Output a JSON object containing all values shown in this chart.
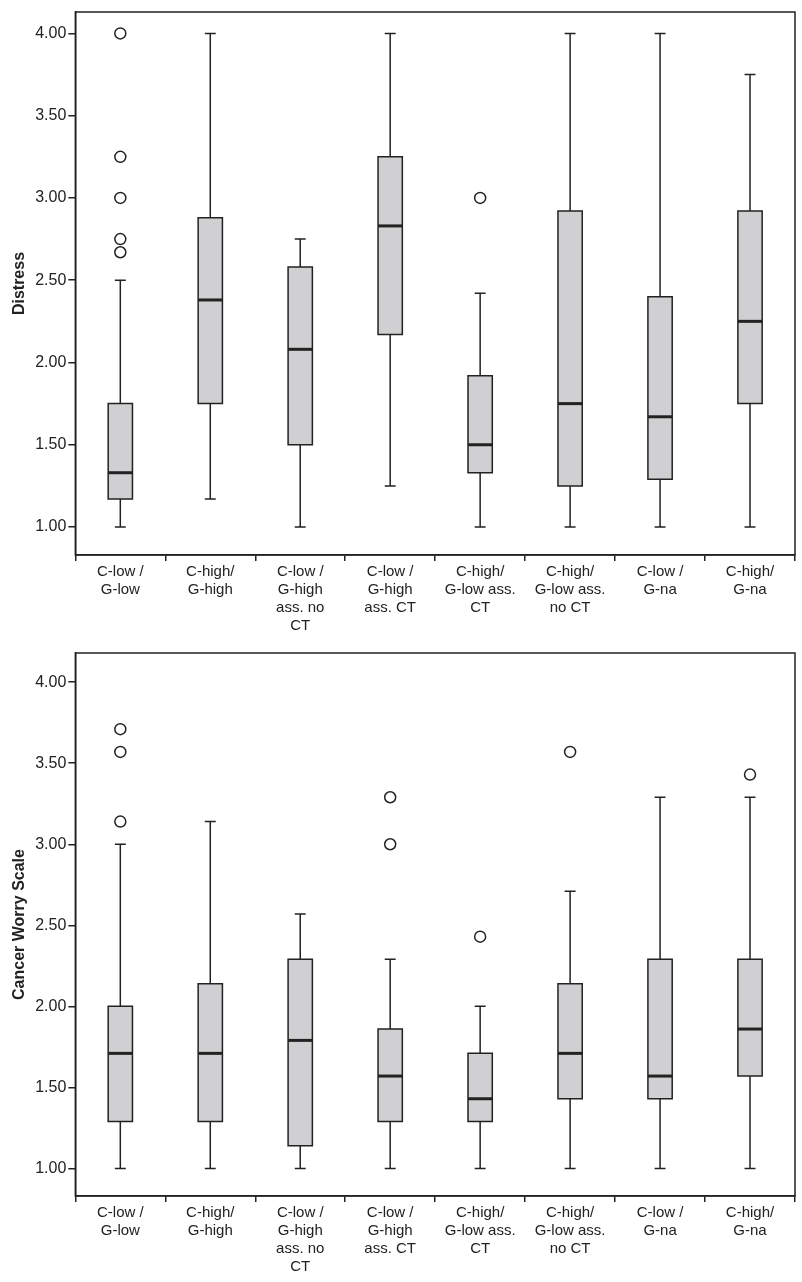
{
  "chart_data": [
    {
      "type": "box",
      "ylabel": "Distress",
      "categories": [
        "C-low / G-low",
        "C-high/ G-high",
        "C-low / G-high ass. no CT",
        "C-low / G-high ass. CT",
        "C-high/ G-low ass. CT",
        "C-high/ G-low ass. no CT",
        "C-low / G-na",
        "C-high/ G-na"
      ],
      "boxes": [
        {
          "low": 1.0,
          "q1": 1.17,
          "median": 1.33,
          "q3": 1.75,
          "high": 2.5,
          "outliers": [
            2.67,
            2.75,
            3.0,
            3.25,
            4.0
          ]
        },
        {
          "low": 1.17,
          "q1": 1.75,
          "median": 2.38,
          "q3": 2.88,
          "high": 4.0
        },
        {
          "low": 1.0,
          "q1": 1.5,
          "median": 2.08,
          "q3": 2.58,
          "high": 2.75
        },
        {
          "low": 1.25,
          "q1": 2.17,
          "median": 2.83,
          "q3": 3.25,
          "high": 4.0
        },
        {
          "low": 1.0,
          "q1": 1.33,
          "median": 1.5,
          "q3": 1.92,
          "high": 2.42,
          "outliers": [
            3.0
          ]
        },
        {
          "low": 1.0,
          "q1": 1.25,
          "median": 1.75,
          "q3": 2.92,
          "high": 4.0
        },
        {
          "low": 1.0,
          "q1": 1.29,
          "median": 1.67,
          "q3": 2.4,
          "high": 4.0
        },
        {
          "low": 1.0,
          "q1": 1.75,
          "median": 2.25,
          "q3": 2.92,
          "high": 3.75
        }
      ],
      "color": "#d0d0d2",
      "ylim": [
        0.83,
        4.13
      ],
      "yticks": [
        {
          "value": 1,
          "label": "1.00"
        },
        {
          "value": 1.5,
          "label": "1.50"
        },
        {
          "value": 2,
          "label": "2.00"
        },
        {
          "value": 2.5,
          "label": "2.50"
        },
        {
          "value": 3,
          "label": "3.00"
        },
        {
          "value": 3.5,
          "label": "3.50"
        },
        {
          "value": 4,
          "label": "4.00"
        }
      ],
      "grid": false,
      "legend": false
    },
    {
      "type": "box",
      "ylabel": "Cancer Worry Scale",
      "categories": [
        "C-low / G-low",
        "C-high/ G-high",
        "C-low / G-high ass. no CT",
        "C-low / G-high ass. CT",
        "C-high/ G-low ass. CT",
        "C-high/ G-low ass. no CT",
        "C-low / G-na",
        "C-high/ G-na"
      ],
      "boxes": [
        {
          "low": 1.0,
          "q1": 1.29,
          "median": 1.71,
          "q3": 2.0,
          "high": 3.0,
          "outliers": [
            3.14,
            3.57,
            3.71
          ]
        },
        {
          "low": 1.0,
          "q1": 1.29,
          "median": 1.71,
          "q3": 2.14,
          "high": 3.14
        },
        {
          "low": 1.0,
          "q1": 1.14,
          "median": 1.79,
          "q3": 2.29,
          "high": 2.57
        },
        {
          "low": 1.0,
          "q1": 1.29,
          "median": 1.57,
          "q3": 1.86,
          "high": 2.29,
          "outliers": [
            3.0,
            3.29
          ]
        },
        {
          "low": 1.0,
          "q1": 1.29,
          "median": 1.43,
          "q3": 1.71,
          "high": 2.0,
          "outliers": [
            2.43
          ]
        },
        {
          "low": 1.0,
          "q1": 1.43,
          "median": 1.71,
          "q3": 2.14,
          "high": 2.71,
          "outliers": [
            3.57
          ]
        },
        {
          "low": 1.0,
          "q1": 1.43,
          "median": 1.57,
          "q3": 2.29,
          "high": 3.29
        },
        {
          "low": 1.0,
          "q1": 1.57,
          "median": 1.86,
          "q3": 2.29,
          "high": 3.29,
          "outliers": [
            3.43
          ]
        }
      ],
      "color": "#d0d0d2",
      "ylim": [
        0.83,
        4.18
      ],
      "yticks": [
        {
          "value": 1,
          "label": "1.00"
        },
        {
          "value": 1.5,
          "label": "1.50"
        },
        {
          "value": 2,
          "label": "2.00"
        },
        {
          "value": 2.5,
          "label": "2.50"
        },
        {
          "value": 3,
          "label": "3.00"
        },
        {
          "value": 3.5,
          "label": "3.50"
        },
        {
          "value": 4,
          "label": "4.00"
        }
      ],
      "grid": false,
      "legend": false
    }
  ]
}
